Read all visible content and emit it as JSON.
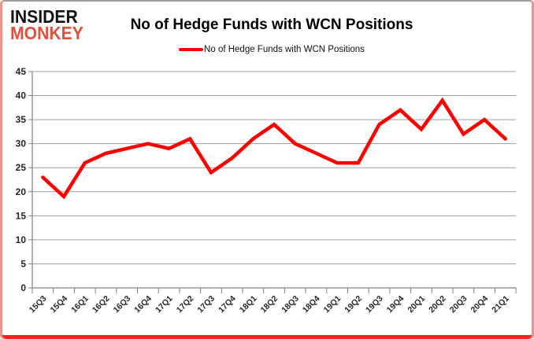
{
  "logo": {
    "line1": "INSIDER",
    "line2": "MONKEY"
  },
  "header": {
    "title": "No of Hedge Funds with WCN Positions"
  },
  "legend": {
    "label": "No of Hedge Funds with WCN Positions"
  },
  "colors": {
    "series": "#ff0000",
    "grid": "#a0a0a0",
    "axis": "#808080",
    "tick_text": "#262626",
    "logo_insider": "#141414",
    "logo_monkey": "#e0513e",
    "frame_sides": "#f0928c",
    "frame_bottom": "#ff2222",
    "frame_top": "#9a9a9a"
  },
  "chart_data": {
    "type": "line",
    "title": "No of Hedge Funds with WCN Positions",
    "categories": [
      "15Q3",
      "15Q4",
      "16Q1",
      "16Q2",
      "16Q3",
      "16Q4",
      "17Q1",
      "17Q2",
      "17Q3",
      "17Q4",
      "18Q1",
      "18Q2",
      "18Q3",
      "18Q4",
      "19Q1",
      "19Q2",
      "19Q3",
      "19Q4",
      "20Q1",
      "20Q2",
      "20Q3",
      "20Q4",
      "21Q1"
    ],
    "series": [
      {
        "name": "No of Hedge Funds with WCN Positions",
        "color": "#ff0000",
        "values": [
          23,
          19,
          26,
          28,
          29,
          30,
          29,
          31,
          24,
          27,
          31,
          34,
          30,
          28,
          26,
          26,
          34,
          37,
          33,
          39,
          32,
          35,
          31
        ]
      }
    ],
    "xlabel": "",
    "ylabel": "",
    "ylim": [
      0,
      45
    ],
    "ytick_step": 5,
    "yticks": [
      0,
      5,
      10,
      15,
      20,
      25,
      30,
      35,
      40,
      45
    ],
    "grid": "horizontal",
    "legend_position": "top-center",
    "x_label_rotation_deg": -45
  }
}
